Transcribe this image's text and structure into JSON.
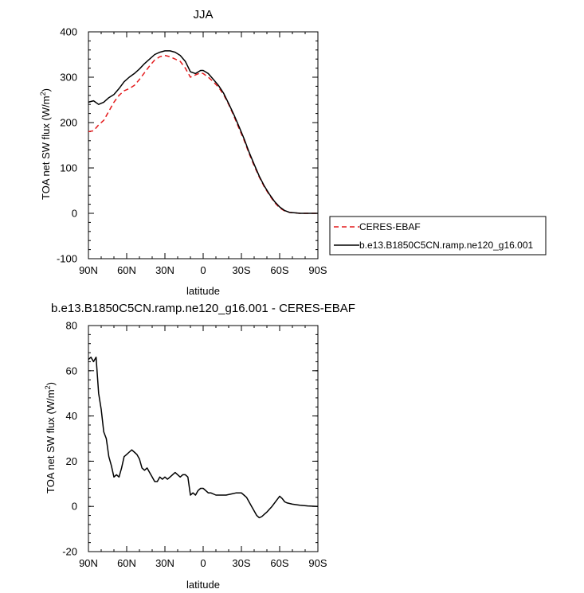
{
  "chart_data": [
    {
      "type": "line",
      "title": "JJA",
      "xlabel": "latitude",
      "ylabel": "TOA net SW flux (W/m",
      "ylabel_sup": "2",
      "ylabel_close": ")",
      "xlim": [
        90,
        -90
      ],
      "ylim": [
        -100,
        400
      ],
      "x_ticks": [
        {
          "value": 90,
          "label": "90N"
        },
        {
          "value": 60,
          "label": "60N"
        },
        {
          "value": 30,
          "label": "30N"
        },
        {
          "value": 0,
          "label": "0"
        },
        {
          "value": -30,
          "label": "30S"
        },
        {
          "value": -60,
          "label": "60S"
        },
        {
          "value": -90,
          "label": "90S"
        }
      ],
      "y_ticks": [
        {
          "value": -100,
          "label": "-100"
        },
        {
          "value": 0,
          "label": "0"
        },
        {
          "value": 100,
          "label": "100"
        },
        {
          "value": 200,
          "label": "200"
        },
        {
          "value": 300,
          "label": "300"
        },
        {
          "value": 400,
          "label": "400"
        }
      ],
      "legend": "right",
      "series": [
        {
          "name": "CERES-EBAF",
          "color": "#e41a1c",
          "dash": "dashed",
          "x": [
            90,
            86,
            82,
            78,
            74,
            70,
            66,
            62,
            58,
            54,
            50,
            46,
            42,
            38,
            34,
            30,
            26,
            22,
            18,
            14,
            10,
            6,
            2,
            0,
            -4,
            -8,
            -12,
            -16,
            -20,
            -24,
            -28,
            -32,
            -36,
            -40,
            -44,
            -48,
            -52,
            -56,
            -60,
            -64,
            -68,
            -72,
            -76,
            -80,
            -84,
            -88,
            -90
          ],
          "y": [
            180,
            182,
            195,
            205,
            225,
            245,
            260,
            270,
            275,
            282,
            295,
            310,
            325,
            338,
            345,
            348,
            345,
            340,
            335,
            320,
            300,
            305,
            310,
            308,
            300,
            290,
            278,
            262,
            240,
            215,
            188,
            162,
            132,
            105,
            80,
            58,
            40,
            24,
            12,
            5,
            2,
            1,
            0,
            0,
            0,
            0,
            0
          ]
        },
        {
          "name": "b.e13.B1850C5CN.ramp.ne120_g16.001",
          "color": "#000000",
          "dash": "solid",
          "x": [
            90,
            86,
            82,
            78,
            74,
            70,
            66,
            62,
            58,
            54,
            50,
            46,
            42,
            38,
            34,
            30,
            26,
            22,
            18,
            14,
            10,
            6,
            2,
            0,
            -4,
            -8,
            -12,
            -16,
            -20,
            -24,
            -28,
            -32,
            -36,
            -40,
            -44,
            -48,
            -52,
            -56,
            -60,
            -64,
            -68,
            -72,
            -76,
            -80,
            -84,
            -88,
            -90
          ],
          "y": [
            245,
            248,
            240,
            245,
            255,
            262,
            275,
            290,
            300,
            308,
            318,
            330,
            340,
            350,
            355,
            358,
            358,
            355,
            348,
            335,
            312,
            308,
            315,
            315,
            308,
            295,
            282,
            265,
            242,
            218,
            192,
            165,
            135,
            108,
            82,
            60,
            42,
            26,
            14,
            6,
            2,
            1,
            0,
            0,
            0,
            0,
            0
          ]
        }
      ]
    },
    {
      "type": "line",
      "title": "b.e13.B1850C5CN.ramp.ne120_g16.001 - CERES-EBAF",
      "xlabel": "latitude",
      "ylabel": "TOA net SW flux (W/m",
      "ylabel_sup": "2",
      "ylabel_close": ")",
      "xlim": [
        90,
        -90
      ],
      "ylim": [
        -20,
        80
      ],
      "x_ticks": [
        {
          "value": 90,
          "label": "90N"
        },
        {
          "value": 60,
          "label": "60N"
        },
        {
          "value": 30,
          "label": "30N"
        },
        {
          "value": 0,
          "label": "0"
        },
        {
          "value": -30,
          "label": "30S"
        },
        {
          "value": -60,
          "label": "60S"
        },
        {
          "value": -90,
          "label": "90S"
        }
      ],
      "y_ticks": [
        {
          "value": -20,
          "label": "-20"
        },
        {
          "value": 0,
          "label": "0"
        },
        {
          "value": 20,
          "label": "20"
        },
        {
          "value": 40,
          "label": "40"
        },
        {
          "value": 60,
          "label": "60"
        },
        {
          "value": 80,
          "label": "80"
        }
      ],
      "series": [
        {
          "color": "#000000",
          "dash": "solid",
          "x": [
            90,
            88,
            86,
            84,
            82,
            80,
            78,
            76,
            74,
            72,
            70,
            68,
            66,
            64,
            62,
            60,
            58,
            56,
            54,
            52,
            50,
            48,
            46,
            44,
            42,
            40,
            38,
            36,
            34,
            32,
            30,
            28,
            26,
            24,
            22,
            20,
            18,
            16,
            14,
            12,
            10,
            8,
            6,
            4,
            2,
            0,
            -2,
            -4,
            -6,
            -10,
            -14,
            -18,
            -22,
            -26,
            -30,
            -32,
            -34,
            -36,
            -38,
            -40,
            -42,
            -44,
            -46,
            -48,
            -50,
            -54,
            -58,
            -60,
            -62,
            -64,
            -66,
            -70,
            -76,
            -82,
            -90
          ],
          "y": [
            65,
            66,
            64,
            66,
            50,
            43,
            33,
            30,
            22,
            18,
            13,
            14,
            13,
            17,
            22,
            23,
            24,
            25,
            24,
            23,
            21,
            17,
            16,
            17,
            15,
            13,
            11,
            11,
            13,
            12,
            13,
            12,
            13,
            14,
            15,
            14,
            13,
            14,
            14,
            13,
            5,
            6,
            5,
            7,
            8,
            8,
            7,
            6,
            6,
            5,
            5,
            5,
            5.5,
            6,
            6,
            5,
            4,
            2,
            0,
            -2,
            -4,
            -5,
            -4.5,
            -3.5,
            -2.5,
            0,
            3,
            4.5,
            3.5,
            2,
            1.5,
            1,
            0.5,
            0.2,
            0
          ]
        }
      ]
    }
  ]
}
